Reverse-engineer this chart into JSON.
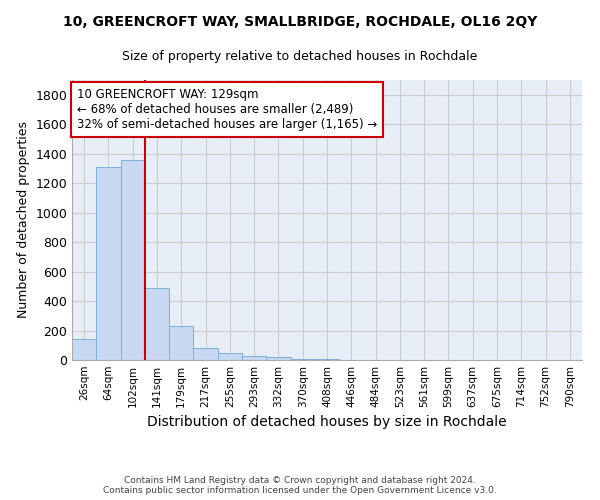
{
  "title1": "10, GREENCROFT WAY, SMALLBRIDGE, ROCHDALE, OL16 2QY",
  "title2": "Size of property relative to detached houses in Rochdale",
  "xlabel": "Distribution of detached houses by size in Rochdale",
  "ylabel": "Number of detached properties",
  "footer1": "Contains HM Land Registry data © Crown copyright and database right 2024.",
  "footer2": "Contains public sector information licensed under the Open Government Licence v3.0.",
  "categories": [
    "26sqm",
    "64sqm",
    "102sqm",
    "141sqm",
    "179sqm",
    "217sqm",
    "255sqm",
    "293sqm",
    "332sqm",
    "370sqm",
    "408sqm",
    "446sqm",
    "484sqm",
    "523sqm",
    "561sqm",
    "599sqm",
    "637sqm",
    "675sqm",
    "714sqm",
    "752sqm",
    "790sqm"
  ],
  "values": [
    140,
    1310,
    1360,
    490,
    230,
    80,
    50,
    25,
    20,
    5,
    5,
    0,
    0,
    0,
    0,
    0,
    0,
    0,
    0,
    0,
    0
  ],
  "bar_color": "#c8d8f0",
  "bar_edge_color": "#7ab0d8",
  "red_line_index": 3,
  "red_line_color": "#cc0000",
  "annotation_text": "10 GREENCROFT WAY: 129sqm\n← 68% of detached houses are smaller (2,489)\n32% of semi-detached houses are larger (1,165) →",
  "annotation_box_color": "#ffffff",
  "annotation_box_edge": "#cc0000",
  "ylim": [
    0,
    1900
  ],
  "yticks": [
    0,
    200,
    400,
    600,
    800,
    1000,
    1200,
    1400,
    1600,
    1800
  ],
  "grid_color": "#cccccc",
  "background_color": "#e8eef8",
  "fig_background": "#ffffff"
}
